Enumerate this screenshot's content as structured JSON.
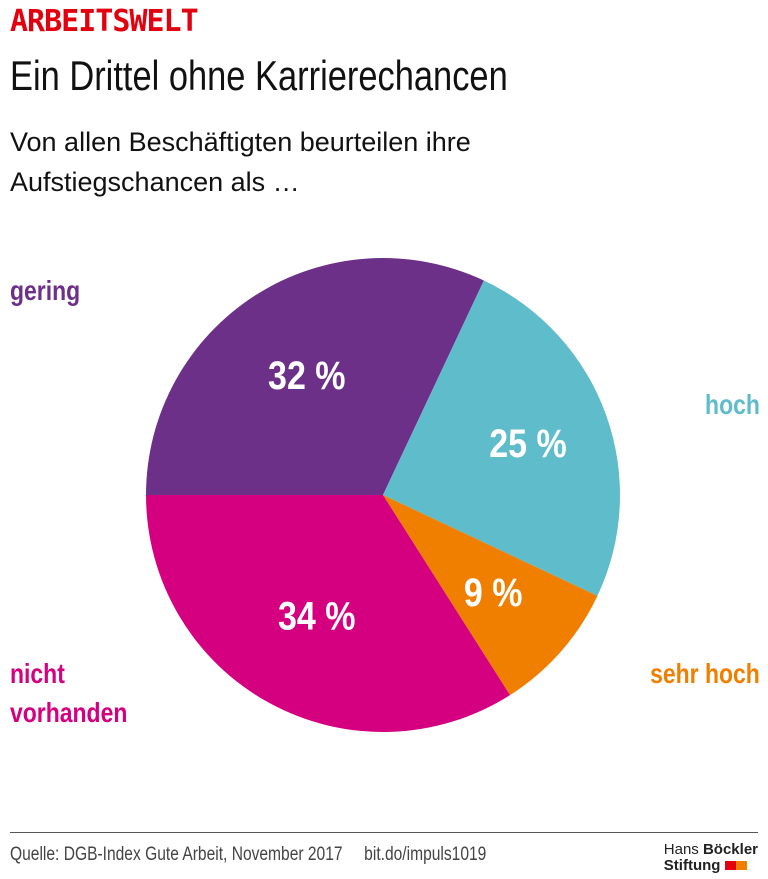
{
  "header": {
    "kicker": "ARBEITSWELT",
    "title": "Ein Drittel ohne Karrierechancen",
    "subtitle_line1": "Von allen Beschäftigten beurteilen ihre",
    "subtitle_line2": "Aufstiegschancen als …"
  },
  "chart_data": {
    "type": "pie",
    "start_angle": "9 o'clock, clockwise",
    "slices": [
      {
        "label": "gering",
        "value": 32,
        "display": "32 %",
        "color": "#6c3089"
      },
      {
        "label": "hoch",
        "value": 25,
        "display": "25 %",
        "color": "#5fbccb"
      },
      {
        "label": "sehr hoch",
        "value": 9,
        "display": "9 %",
        "color": "#f07f00"
      },
      {
        "label": "nicht vorhanden",
        "label_line1": "nicht",
        "label_line2": "vorhanden",
        "value": 34,
        "display": "34 %",
        "color": "#d5007f"
      }
    ]
  },
  "footer": {
    "source": "Quelle: DGB-Index Gute Arbeit, November 2017     bit.do/impuls1019",
    "logo_line1_a": "Hans ",
    "logo_line1_b": "Böckler",
    "logo_line2": "Stiftung",
    "logo_colors": [
      "#e3000f",
      "#f07f00"
    ]
  }
}
